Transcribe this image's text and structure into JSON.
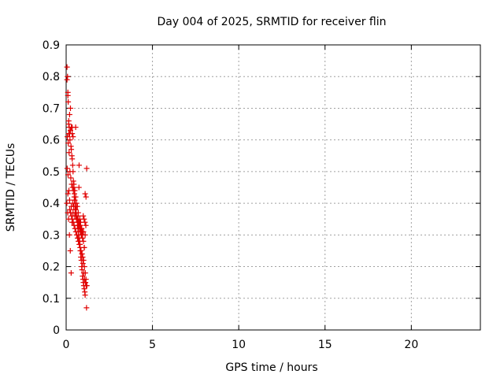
{
  "chart_data": {
    "type": "scatter",
    "title": "Day 004 of 2025, SRMTID for receiver flin",
    "xlabel": "GPS time / hours",
    "ylabel": "SRMTID / TECUs",
    "xlim": [
      0,
      24
    ],
    "ylim": [
      0,
      0.9
    ],
    "xticks": [
      0,
      5,
      10,
      15,
      20
    ],
    "yticks": [
      0,
      0.1,
      0.2,
      0.3,
      0.4,
      0.5,
      0.6,
      0.7,
      0.8,
      0.9
    ],
    "grid": true,
    "marker": "+",
    "color": "#e00000",
    "series": [
      {
        "x": [
          0.05,
          0.08,
          0.1,
          0.12,
          0.15,
          0.18,
          0.2,
          0.22,
          0.25,
          0.28,
          0.3,
          0.33,
          0.35,
          0.38,
          0.4,
          0.42,
          0.45,
          0.48,
          0.5,
          0.52,
          0.55,
          0.58,
          0.6,
          0.62,
          0.65,
          0.68,
          0.7,
          0.72,
          0.75,
          0.78,
          0.8,
          0.82,
          0.85,
          0.88,
          0.9,
          0.92,
          0.95,
          0.98,
          1.0,
          1.02,
          1.05,
          1.08,
          1.1,
          1.12,
          1.15,
          1.18,
          1.2,
          0.05,
          0.1,
          0.15,
          0.2,
          0.25,
          0.3,
          0.35,
          0.4,
          0.45,
          0.5,
          0.55,
          0.6,
          0.65,
          0.7,
          0.75,
          0.8,
          0.85,
          0.9,
          0.95,
          1.0,
          1.05,
          1.1,
          1.15,
          0.07,
          0.12,
          0.17,
          0.22,
          0.27,
          0.32,
          0.37,
          0.42,
          0.47,
          0.52,
          0.57,
          0.62,
          0.67,
          0.72,
          0.77,
          0.82,
          0.87,
          0.92,
          0.97,
          1.02,
          1.07,
          1.12,
          0.06,
          0.11,
          0.16,
          0.21,
          0.26,
          0.31,
          0.36,
          0.41,
          0.46,
          0.51,
          0.56,
          0.61,
          0.66,
          0.71,
          0.76,
          0.81,
          0.86,
          0.91,
          0.96,
          1.01,
          1.06,
          1.11,
          1.16,
          0.04,
          0.09,
          0.14,
          0.19,
          0.24,
          0.29,
          0.34,
          0.39,
          0.44,
          0.49,
          0.54,
          0.59,
          0.64,
          0.69,
          0.74,
          0.79,
          0.84,
          0.89,
          0.94,
          0.99,
          1.04,
          1.09,
          1.14,
          1.19,
          0.1,
          0.2,
          0.3,
          0.4,
          0.5,
          0.6,
          0.7,
          0.8,
          0.9,
          1.0,
          1.1,
          0.15,
          0.35,
          0.55,
          0.75,
          0.95,
          1.05
        ],
        "y": [
          0.83,
          0.8,
          0.75,
          0.72,
          0.65,
          0.64,
          0.62,
          0.6,
          0.63,
          0.58,
          0.57,
          0.55,
          0.54,
          0.52,
          0.5,
          0.47,
          0.45,
          0.43,
          0.41,
          0.4,
          0.38,
          0.37,
          0.36,
          0.35,
          0.33,
          0.32,
          0.31,
          0.3,
          0.29,
          0.28,
          0.27,
          0.25,
          0.23,
          0.22,
          0.2,
          0.19,
          0.17,
          0.16,
          0.15,
          0.14,
          0.13,
          0.12,
          0.11,
          0.15,
          0.16,
          0.07,
          0.14,
          0.79,
          0.74,
          0.66,
          0.68,
          0.7,
          0.64,
          0.62,
          0.61,
          0.46,
          0.44,
          0.42,
          0.4,
          0.39,
          0.37,
          0.34,
          0.33,
          0.32,
          0.3,
          0.29,
          0.28,
          0.26,
          0.43,
          0.42,
          0.61,
          0.59,
          0.56,
          0.5,
          0.48,
          0.46,
          0.45,
          0.44,
          0.42,
          0.38,
          0.36,
          0.35,
          0.34,
          0.33,
          0.32,
          0.31,
          0.3,
          0.24,
          0.21,
          0.18,
          0.16,
          0.15,
          0.51,
          0.49,
          0.44,
          0.38,
          0.37,
          0.36,
          0.35,
          0.34,
          0.33,
          0.32,
          0.31,
          0.3,
          0.29,
          0.28,
          0.27,
          0.26,
          0.25,
          0.24,
          0.23,
          0.22,
          0.2,
          0.18,
          0.14,
          0.4,
          0.37,
          0.35,
          0.3,
          0.25,
          0.18,
          0.34,
          0.4,
          0.39,
          0.41,
          0.37,
          0.39,
          0.35,
          0.36,
          0.45,
          0.35,
          0.34,
          0.32,
          0.31,
          0.36,
          0.35,
          0.34,
          0.33,
          0.51,
          0.43,
          0.41,
          0.39,
          0.37,
          0.36,
          0.35,
          0.34,
          0.33,
          0.32,
          0.31,
          0.3,
          0.62,
          0.64,
          0.64,
          0.52,
          0.3,
          0.26
        ]
      }
    ]
  }
}
